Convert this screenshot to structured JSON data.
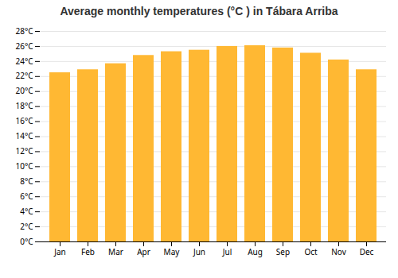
{
  "chart_data": {
    "type": "bar",
    "title": "Average monthly temperatures (°C ) in Tábara Arriba",
    "categories": [
      "Jan",
      "Feb",
      "Mar",
      "Apr",
      "May",
      "Jun",
      "Jul",
      "Aug",
      "Sep",
      "Oct",
      "Nov",
      "Dec"
    ],
    "values": [
      22.5,
      22.9,
      23.7,
      24.8,
      25.3,
      25.5,
      26.0,
      26.1,
      25.8,
      25.1,
      24.2,
      22.9
    ],
    "color": "#FFB833",
    "ylim": [
      0,
      28
    ],
    "yticks": [
      {
        "value": 0,
        "label": "0°C"
      },
      {
        "value": 2,
        "label": "2°C"
      },
      {
        "value": 4,
        "label": "4°C"
      },
      {
        "value": 6,
        "label": "6°C"
      },
      {
        "value": 8,
        "label": "8°C"
      },
      {
        "value": 10,
        "label": "10°C"
      },
      {
        "value": 12,
        "label": "12°C"
      },
      {
        "value": 14,
        "label": "14°C"
      },
      {
        "value": 16,
        "label": "16°C"
      },
      {
        "value": 18,
        "label": "18°C"
      },
      {
        "value": 20,
        "label": "20°C"
      },
      {
        "value": 22,
        "label": "22°C"
      },
      {
        "value": 24,
        "label": "24°C"
      },
      {
        "value": 26,
        "label": "26°C"
      },
      {
        "value": 28,
        "label": "28°C"
      }
    ],
    "grid": true
  }
}
